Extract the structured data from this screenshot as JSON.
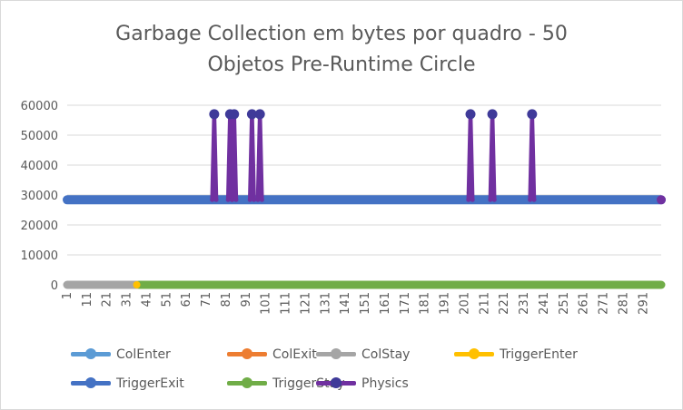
{
  "chart_data": {
    "type": "line",
    "title_lines": [
      "Garbage Collection em bytes por quadro - 50",
      "Objetos Pre-Runtime Circle"
    ],
    "xlabel": "",
    "ylabel": "",
    "x_range": [
      1,
      300
    ],
    "x_tick_labels": [
      "1",
      "11",
      "21",
      "31",
      "41",
      "51",
      "61",
      "71",
      "81",
      "91",
      "101",
      "111",
      "121",
      "131",
      "141",
      "151",
      "161",
      "171",
      "181",
      "191",
      "201",
      "211",
      "221",
      "231",
      "241",
      "251",
      "261",
      "271",
      "281",
      "291"
    ],
    "ylim": [
      0,
      60000
    ],
    "y_ticks": [
      0,
      10000,
      20000,
      30000,
      40000,
      50000,
      60000
    ],
    "y_tick_labels": [
      "0",
      "10000",
      "20000",
      "30000",
      "40000",
      "50000",
      "60000"
    ],
    "grid": "horizontal",
    "legend_position": "bottom",
    "series": [
      {
        "name": "ColEnter",
        "color": "#5b9bd5",
        "visible_segments": []
      },
      {
        "name": "ColExit",
        "color": "#ed7d31",
        "visible_segments": []
      },
      {
        "name": "ColStay",
        "color": "#a5a5a5",
        "visible_segments": [
          {
            "x_start": 1,
            "x_end": 36,
            "value": 0
          }
        ]
      },
      {
        "name": "TriggerEnter",
        "color": "#ffc000",
        "visible_segments": [
          {
            "x_start": 36,
            "x_end": 37,
            "value": 0
          }
        ]
      },
      {
        "name": "TriggerExit",
        "color": "#4472c4",
        "visible_segments": [
          {
            "x_start": 1,
            "x_end": 300,
            "value": 28400
          }
        ]
      },
      {
        "name": "TriggerStay",
        "color": "#70ad47",
        "visible_segments": [
          {
            "x_start": 37,
            "x_end": 300,
            "value": 0
          }
        ]
      },
      {
        "name": "Physics",
        "color": "#7030a0",
        "baseline": 28400,
        "spikes": [
          {
            "x": 75,
            "value": 57000
          },
          {
            "x": 83,
            "value": 57000
          },
          {
            "x": 85,
            "value": 57000
          },
          {
            "x": 94,
            "value": 57000
          },
          {
            "x": 98,
            "value": 57000
          },
          {
            "x": 204,
            "value": 57000
          },
          {
            "x": 215,
            "value": 57000
          },
          {
            "x": 235,
            "value": 57000
          }
        ],
        "end_point": {
          "x": 300,
          "value": 28400
        }
      }
    ]
  }
}
